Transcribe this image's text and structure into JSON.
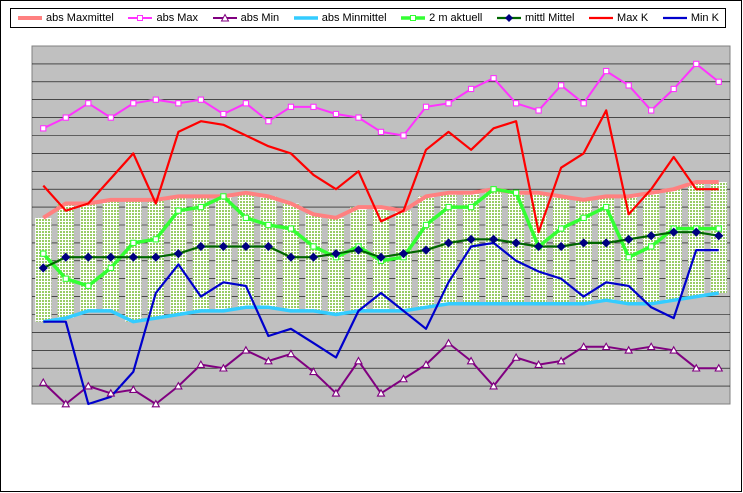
{
  "chart_data": {
    "type": "line",
    "title": "",
    "xlabel": "",
    "ylabel": "",
    "x": [
      1,
      2,
      3,
      4,
      5,
      6,
      7,
      8,
      9,
      10,
      11,
      12,
      13,
      14,
      15,
      16,
      17,
      18,
      19,
      20,
      21,
      22,
      23,
      24,
      25,
      26,
      27,
      28,
      29,
      30,
      31
    ],
    "ylim": [
      0,
      100
    ],
    "grid": true,
    "legend_placement": "top",
    "range_band": {
      "upper": "abs Maxmittel",
      "lower": "abs Minmittel",
      "fill": "#99cc66"
    },
    "series": [
      {
        "name": "abs Maxmittel",
        "color": "#ff8080",
        "marker": "none",
        "values": [
          52,
          56,
          56,
          57,
          57,
          57,
          58,
          58,
          58,
          59,
          58,
          56,
          53,
          52,
          55,
          55,
          54,
          58,
          59,
          59,
          60,
          59,
          59,
          58,
          57,
          58,
          58,
          59,
          60,
          62,
          62
        ]
      },
      {
        "name": "abs Max",
        "color": "#ff33ff",
        "marker": "square-open",
        "values": [
          77,
          80,
          84,
          80,
          84,
          85,
          84,
          85,
          81,
          84,
          79,
          83,
          83,
          81,
          80,
          76,
          75,
          83,
          84,
          88,
          91,
          84,
          82,
          89,
          84,
          93,
          89,
          82,
          88,
          95,
          90
        ]
      },
      {
        "name": "abs Min",
        "color": "#800080",
        "marker": "triangle-open",
        "values": [
          6,
          0,
          5,
          3,
          4,
          0,
          5,
          11,
          10,
          15,
          12,
          14,
          9,
          3,
          12,
          3,
          7,
          11,
          17,
          12,
          5,
          13,
          11,
          12,
          16,
          16,
          15,
          16,
          15,
          10,
          10
        ]
      },
      {
        "name": "abs Minmittel",
        "color": "#33ccff",
        "marker": "none",
        "values": [
          23,
          24,
          26,
          26,
          23,
          24,
          25,
          26,
          26,
          27,
          27,
          26,
          26,
          25,
          26,
          26,
          26,
          27,
          28,
          28,
          28,
          28,
          28,
          28,
          28,
          29,
          28,
          28,
          29,
          30,
          31
        ]
      },
      {
        "name": "2 m aktuell",
        "color": "#33ff33",
        "marker": "square-open",
        "values": [
          42,
          35,
          33,
          38,
          45,
          46,
          54,
          55,
          58,
          52,
          50,
          49,
          44,
          41,
          44,
          40,
          41,
          50,
          55,
          55,
          60,
          59,
          44,
          49,
          52,
          55,
          41,
          44,
          49,
          49,
          49
        ]
      },
      {
        "name": "mittl Mittel",
        "color": "#006600",
        "marker": "diamond",
        "marker_color": "#000080",
        "values": [
          38,
          41,
          41,
          41,
          41,
          41,
          42,
          44,
          44,
          44,
          44,
          41,
          41,
          42,
          43,
          41,
          42,
          43,
          45,
          46,
          46,
          45,
          44,
          44,
          45,
          45,
          46,
          47,
          48,
          48,
          47
        ]
      },
      {
        "name": "Max K",
        "color": "#ff0000",
        "marker": "none",
        "values": [
          61,
          54,
          56,
          63,
          70,
          56,
          76,
          79,
          78,
          75,
          72,
          70,
          64,
          60,
          65,
          51,
          54,
          71,
          76,
          71,
          77,
          79,
          48,
          66,
          70,
          82,
          53,
          60,
          69,
          60,
          60
        ]
      },
      {
        "name": "Min K",
        "color": "#0000cc",
        "marker": "none",
        "values": [
          23,
          23,
          0,
          2,
          9,
          31,
          39,
          30,
          34,
          33,
          19,
          21,
          17,
          13,
          26,
          31,
          26,
          21,
          34,
          44,
          45,
          40,
          37,
          35,
          30,
          34,
          33,
          27,
          24,
          43,
          43
        ]
      }
    ]
  }
}
